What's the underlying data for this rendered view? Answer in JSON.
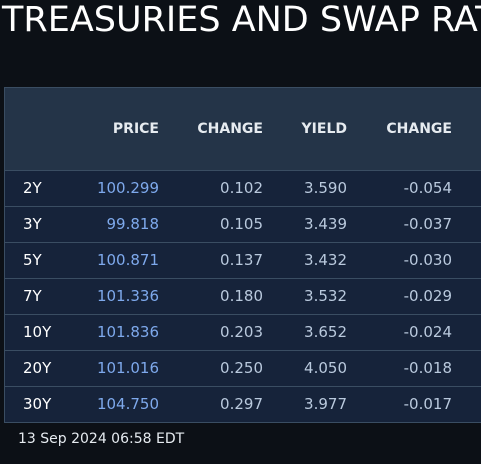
{
  "title": "TREASURIES AND SWAP RATES",
  "table": {
    "headers": [
      "",
      "PRICE",
      "CHANGE",
      "YIELD",
      "CHANGE"
    ],
    "rows": [
      {
        "tenor": "2Y",
        "price": "100.299",
        "price_change": "0.102",
        "yield": "3.590",
        "yield_change": "-0.054"
      },
      {
        "tenor": "3Y",
        "price": "99.818",
        "price_change": "0.105",
        "yield": "3.439",
        "yield_change": "-0.037"
      },
      {
        "tenor": "5Y",
        "price": "100.871",
        "price_change": "0.137",
        "yield": "3.432",
        "yield_change": "-0.030"
      },
      {
        "tenor": "7Y",
        "price": "101.336",
        "price_change": "0.180",
        "yield": "3.532",
        "yield_change": "-0.029"
      },
      {
        "tenor": "10Y",
        "price": "101.836",
        "price_change": "0.203",
        "yield": "3.652",
        "yield_change": "-0.024"
      },
      {
        "tenor": "20Y",
        "price": "101.016",
        "price_change": "0.250",
        "yield": "4.050",
        "yield_change": "-0.018"
      },
      {
        "tenor": "30Y",
        "price": "104.750",
        "price_change": "0.297",
        "yield": "3.977",
        "yield_change": "-0.017"
      }
    ]
  },
  "timestamp": "13 Sep 2024 06:58 EDT",
  "colors": {
    "background": "#0c1016",
    "header_bg": "#243448",
    "row_bg": "#16233a",
    "price_text": "#7ea9ec",
    "value_text": "#b9c9dd",
    "border": "#3a4d62"
  }
}
